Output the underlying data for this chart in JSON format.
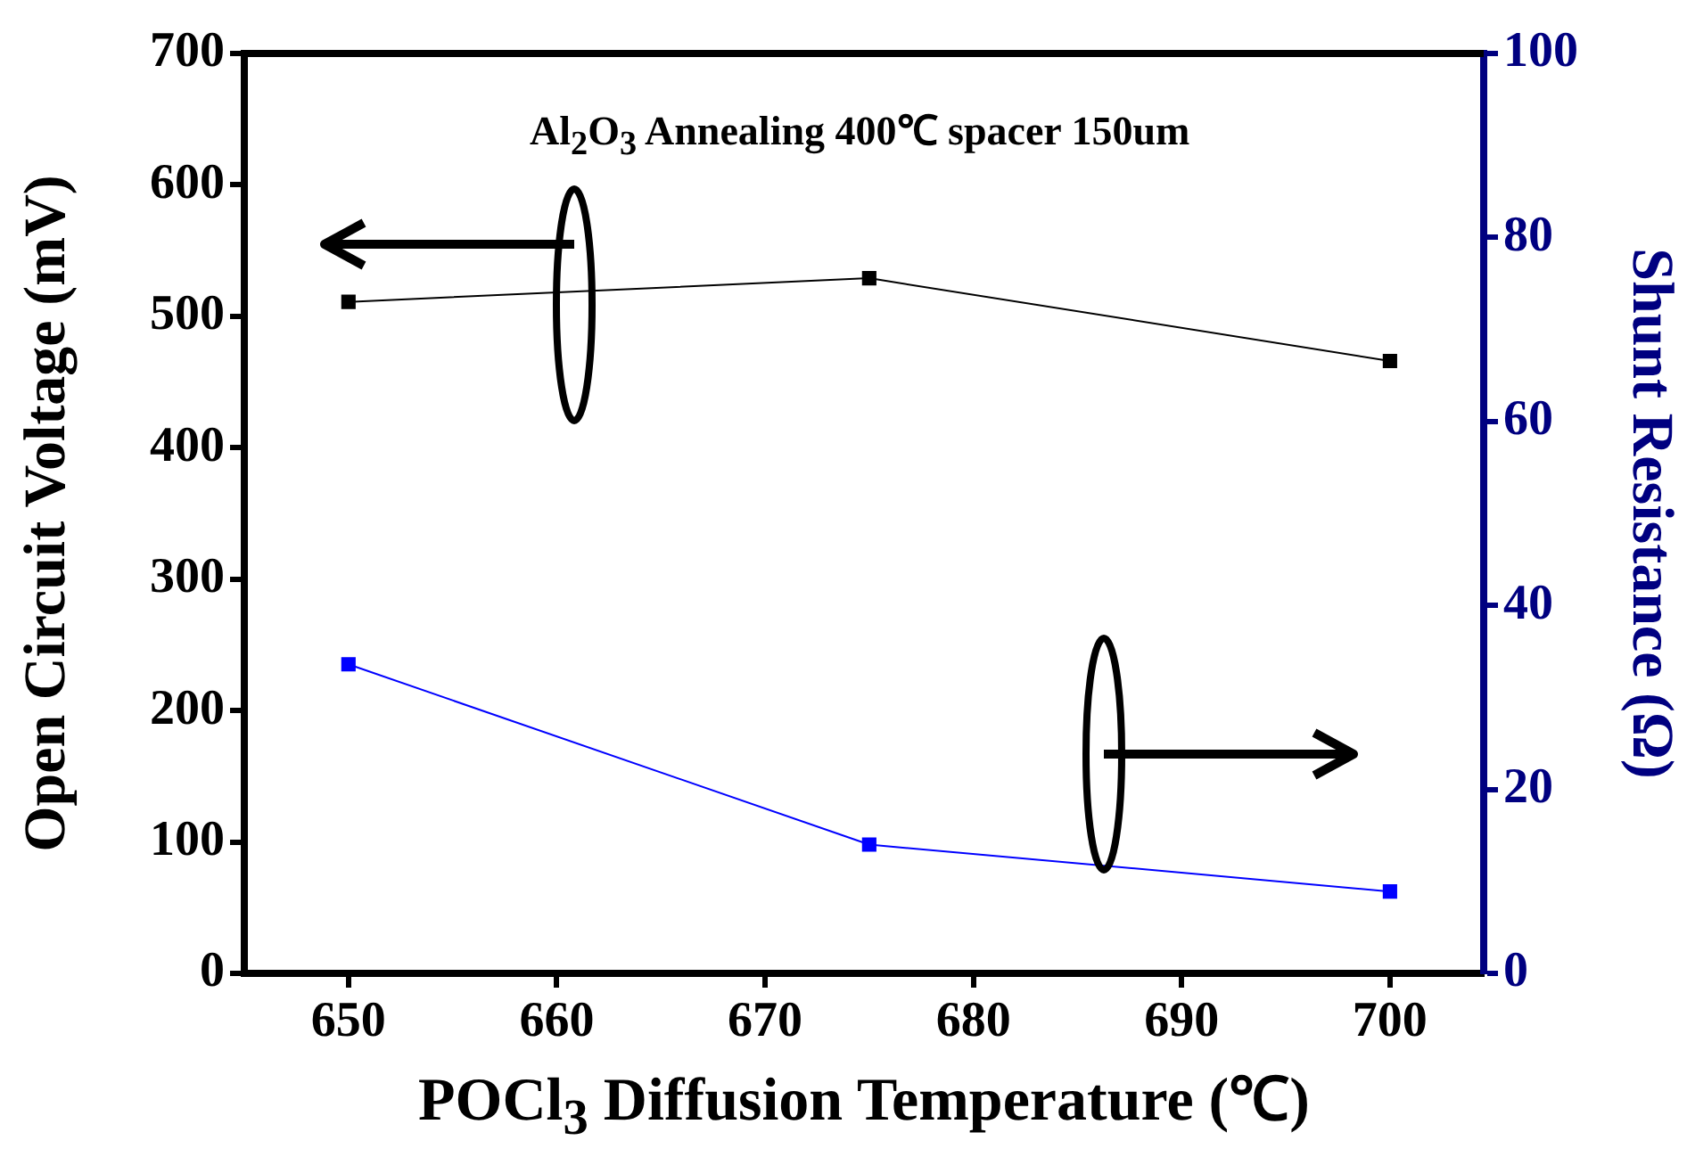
{
  "chart_data": {
    "type": "line",
    "xlabel": "POCl$_{3}$ Diffusion Temperature (℃)",
    "ylabel": "Open Circuit Voltage (mV)",
    "y2label": "Shunt Resistance (Ω)",
    "annotations": [
      "Al$_{2}$O$_{3}$ Annealing 400℃ spacer 150um"
    ],
    "x": [
      650,
      675,
      700
    ],
    "series": [
      {
        "color": "#000000",
        "values": [
          511,
          529,
          466
        ]
      },
      {
        "color": "#0000ff",
        "values": [
          33.6,
          14.0,
          8.9
        ],
        "axis": "y2"
      }
    ],
    "xlim": [
      645,
      704.5
    ],
    "xticks": [
      650,
      660,
      670,
      680,
      690,
      700
    ],
    "ylim": [
      0,
      700
    ],
    "yticks": [
      0,
      100,
      200,
      300,
      400,
      500,
      600,
      700
    ],
    "y2lim": [
      0,
      100
    ],
    "y2ticks": [
      0,
      20,
      40,
      60,
      80,
      100
    ],
    "marker": "square",
    "legend": false
  }
}
